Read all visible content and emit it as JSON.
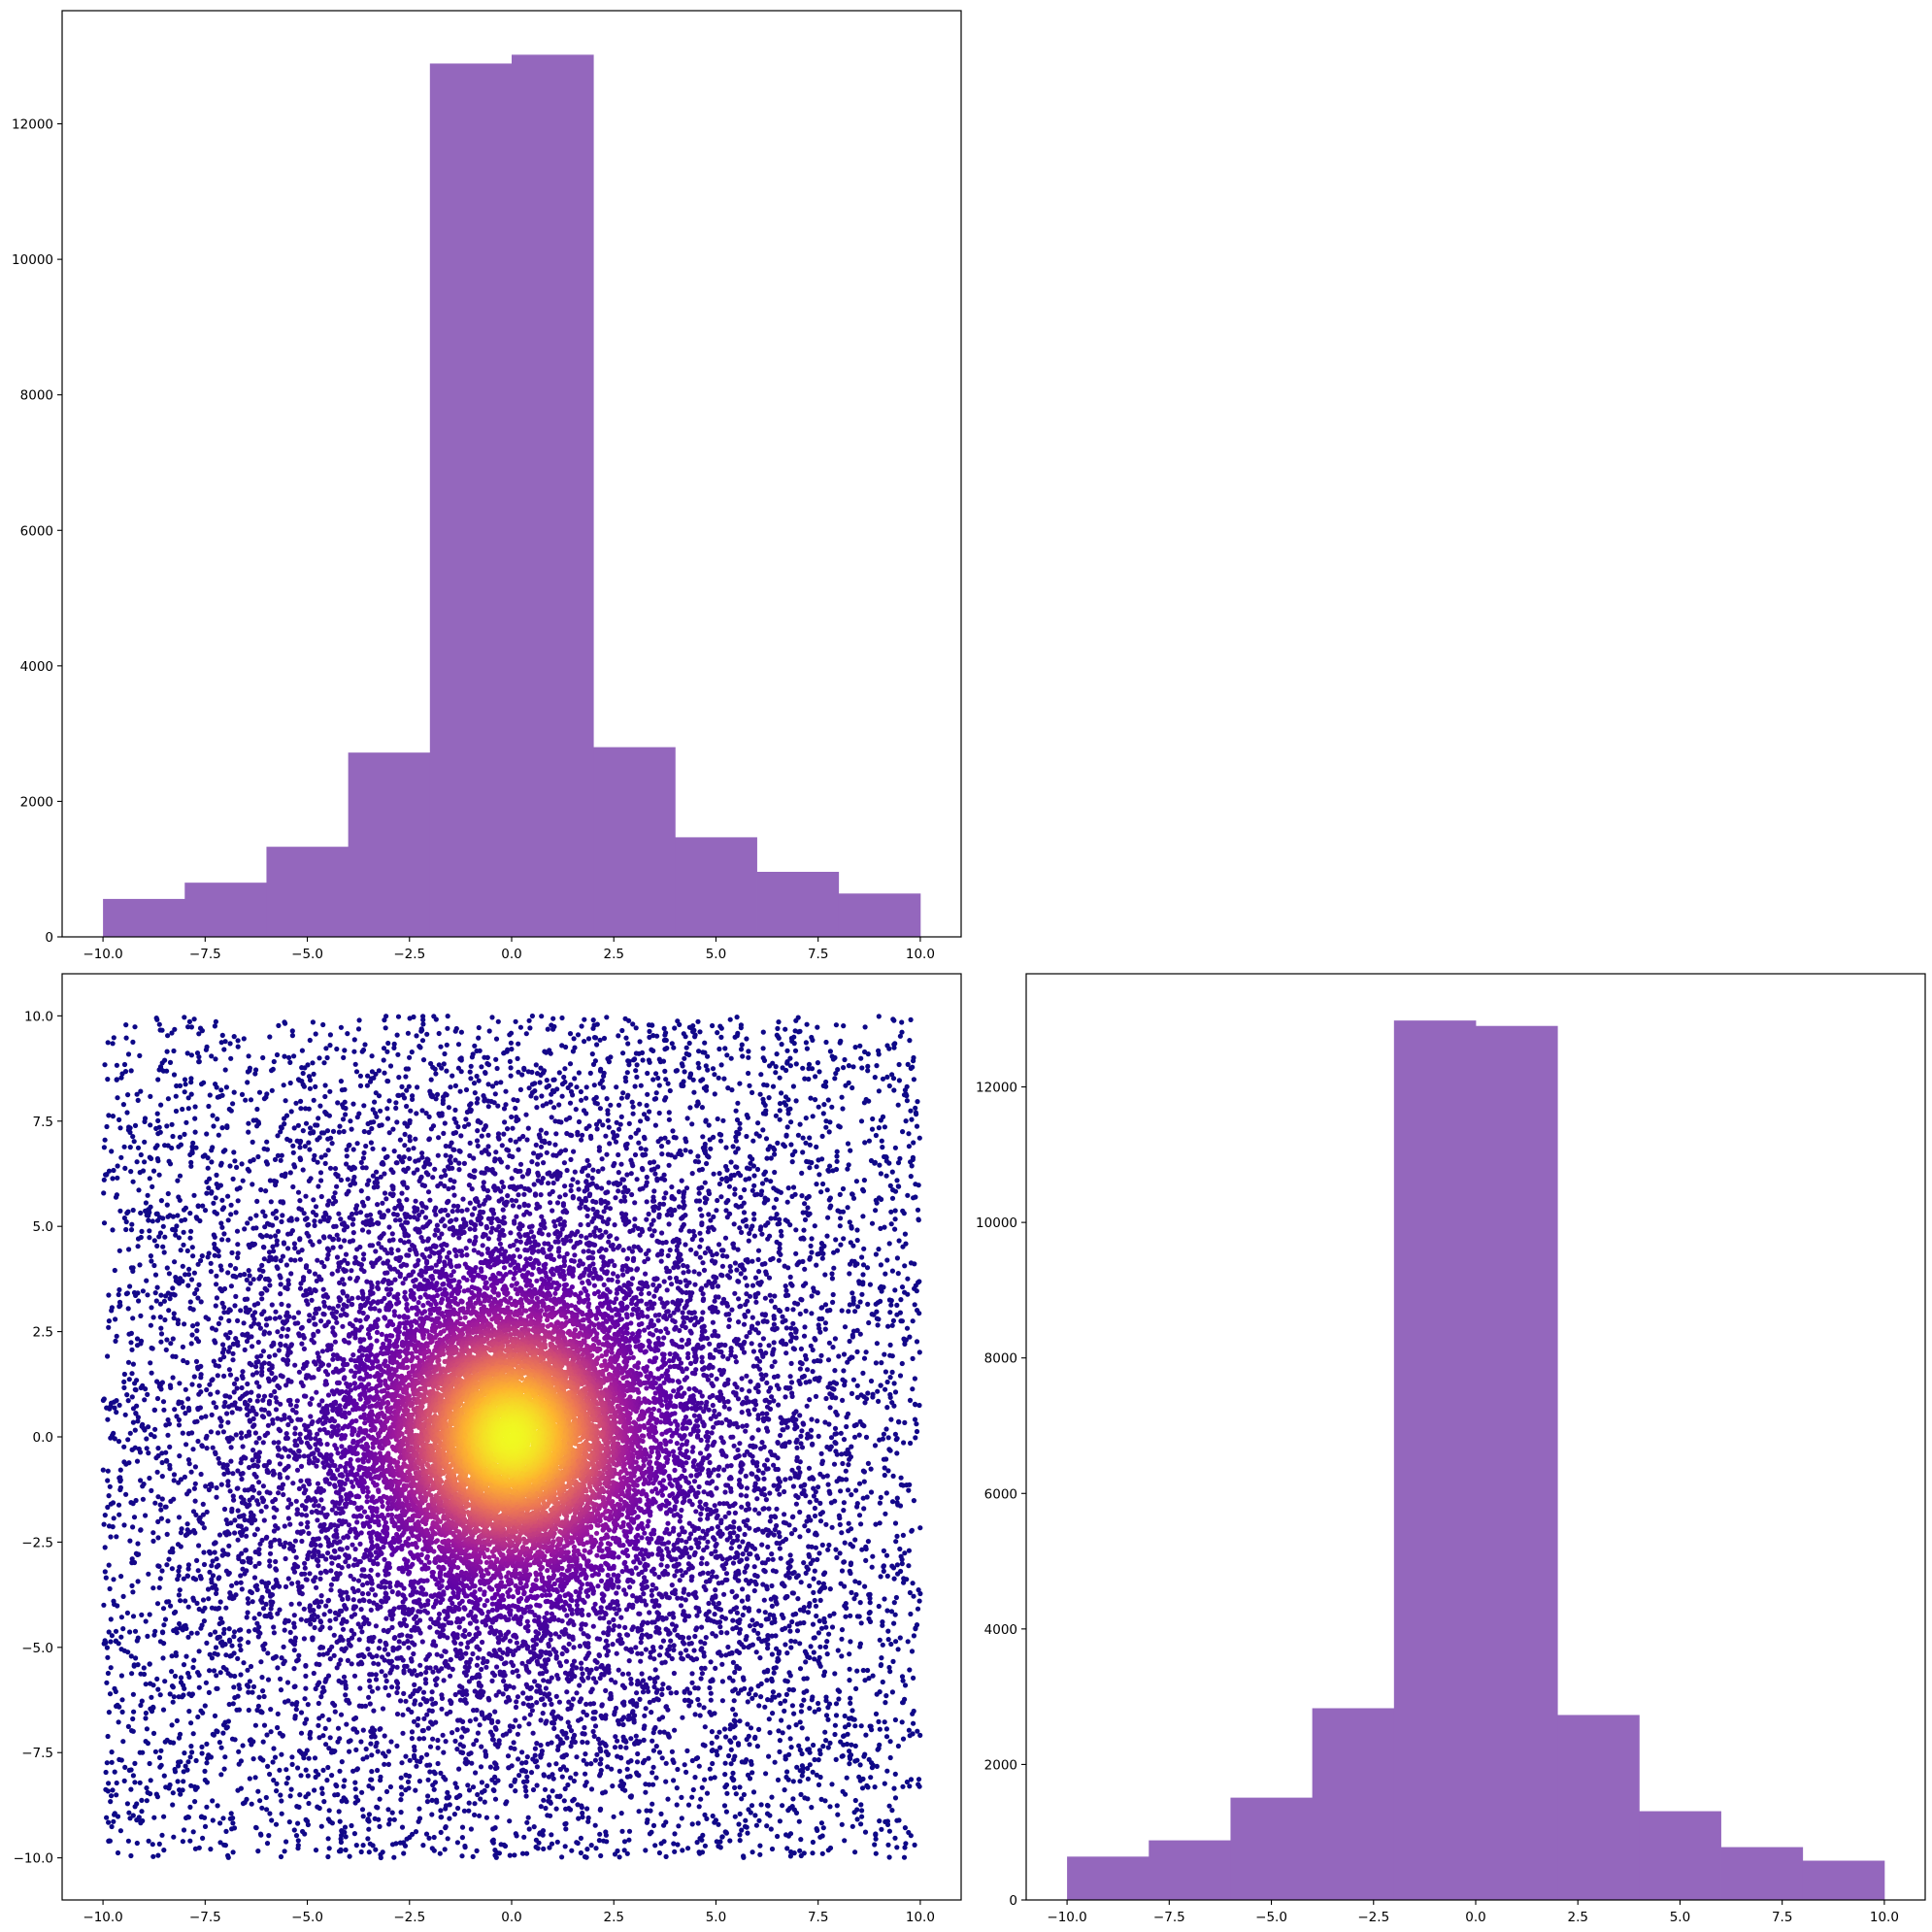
{
  "figure": {
    "background": "#ffffff",
    "layout": "2x2 corner plot, top-right cell empty"
  },
  "chart_data": [
    {
      "id": "hist_x",
      "type": "bar",
      "position": "top-left",
      "bin_edges": [
        -10,
        -8,
        -6,
        -4,
        -2,
        0,
        2,
        4,
        6,
        8,
        10
      ],
      "values": [
        560,
        800,
        1330,
        2720,
        12890,
        13020,
        2800,
        1470,
        960,
        640
      ],
      "color": "#9467bd",
      "xlim": [
        -11,
        11
      ],
      "ylim": [
        0,
        13670
      ],
      "xticks": [
        -10,
        -7.5,
        -5,
        -2.5,
        0,
        2.5,
        5,
        7.5,
        10
      ],
      "xtick_labels": [
        "−10.0",
        "−7.5",
        "−5.0",
        "−2.5",
        "0.0",
        "2.5",
        "5.0",
        "7.5",
        "10.0"
      ],
      "yticks": [
        0,
        2000,
        4000,
        6000,
        8000,
        10000,
        12000
      ],
      "ytick_labels": [
        "0",
        "2000",
        "4000",
        "6000",
        "8000",
        "10000",
        "12000"
      ],
      "title": "",
      "xlabel": "",
      "ylabel": "",
      "grid": false
    },
    {
      "id": "scatter_xy",
      "type": "scatter",
      "position": "bottom-left",
      "point_count": 40000,
      "distribution": "radially symmetric around (0, 0), dense core with roughly uniform background over the square [-10, 10] x [-10, 10]",
      "colormap": "plasma",
      "colormap_stops": [
        "#0d0887",
        "#5c01a6",
        "#9c179e",
        "#cc4778",
        "#ed7953",
        "#fdb42f",
        "#f0f921"
      ],
      "color_by": "point density",
      "xlim": [
        -11,
        11
      ],
      "ylim": [
        -11,
        11
      ],
      "xticks": [
        -10,
        -7.5,
        -5,
        -2.5,
        0,
        2.5,
        5,
        7.5,
        10
      ],
      "xtick_labels": [
        "−10.0",
        "−7.5",
        "−5.0",
        "−2.5",
        "0.0",
        "2.5",
        "5.0",
        "7.5",
        "10.0"
      ],
      "yticks": [
        -10,
        -7.5,
        -5,
        -2.5,
        0,
        2.5,
        5,
        7.5,
        10
      ],
      "ytick_labels": [
        "−10.0",
        "−7.5",
        "−5.0",
        "−2.5",
        "0.0",
        "2.5",
        "5.0",
        "7.5",
        "10.0"
      ],
      "title": "",
      "xlabel": "",
      "ylabel": "",
      "grid": false
    },
    {
      "id": "hist_y",
      "type": "bar",
      "position": "bottom-right",
      "bin_edges": [
        -10,
        -8,
        -6,
        -4,
        -2,
        0,
        2,
        4,
        6,
        8,
        10
      ],
      "values": [
        640,
        880,
        1510,
        2830,
        12980,
        12900,
        2730,
        1310,
        780,
        580
      ],
      "color": "#9467bd",
      "xlim": [
        -11,
        11
      ],
      "ylim": [
        0,
        13670
      ],
      "xticks": [
        -10,
        -7.5,
        -5,
        -2.5,
        0,
        2.5,
        5,
        7.5,
        10
      ],
      "xtick_labels": [
        "−10.0",
        "−7.5",
        "−5.0",
        "−2.5",
        "0.0",
        "2.5",
        "5.0",
        "7.5",
        "10.0"
      ],
      "yticks": [
        0,
        2000,
        4000,
        6000,
        8000,
        10000,
        12000
      ],
      "ytick_labels": [
        "0",
        "2000",
        "4000",
        "6000",
        "8000",
        "10000",
        "12000"
      ],
      "title": "",
      "xlabel": "",
      "ylabel": "",
      "grid": false
    }
  ]
}
